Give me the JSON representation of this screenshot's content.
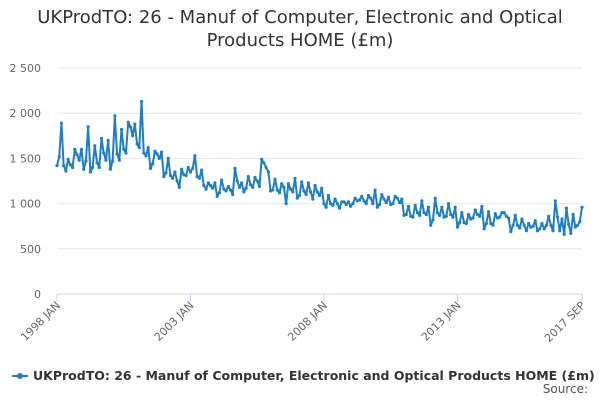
{
  "chart_data": {
    "type": "line",
    "title": "UKProdTO: 26 - Manuf of Computer, Electronic and Optical Products HOME (£m)",
    "xlabel": "",
    "ylabel": "",
    "ylim": [
      0,
      2500
    ],
    "yticks": [
      "0",
      "500",
      "1 000",
      "1 500",
      "2 000",
      "2 500"
    ],
    "xticks": [
      "1998 JAN",
      "2003 JAN",
      "2008 JAN",
      "2013 JAN",
      "2017 SEP"
    ],
    "grid": true,
    "legend_position": "bottom",
    "series": [
      {
        "name": "UKProdTO: 26 - Manuf of Computer, Electronic and Optical Products HOME (£m)",
        "color": "#1f7ebf",
        "points": [
          [
            "1998-01",
            1420
          ],
          [
            "1998-02",
            1520
          ],
          [
            "1998-03",
            1890
          ],
          [
            "1998-04",
            1420
          ],
          [
            "1998-05",
            1360
          ],
          [
            "1998-06",
            1490
          ],
          [
            "1998-07",
            1430
          ],
          [
            "1998-08",
            1400
          ],
          [
            "1998-09",
            1600
          ],
          [
            "1998-10",
            1540
          ],
          [
            "1998-11",
            1480
          ],
          [
            "1998-12",
            1600
          ],
          [
            "1999-01",
            1380
          ],
          [
            "1999-02",
            1470
          ],
          [
            "1999-03",
            1850
          ],
          [
            "1999-04",
            1350
          ],
          [
            "1999-05",
            1400
          ],
          [
            "1999-06",
            1640
          ],
          [
            "1999-07",
            1450
          ],
          [
            "1999-08",
            1400
          ],
          [
            "1999-09",
            1720
          ],
          [
            "1999-10",
            1560
          ],
          [
            "1999-11",
            1480
          ],
          [
            "1999-12",
            1700
          ],
          [
            "2000-01",
            1380
          ],
          [
            "2000-02",
            1470
          ],
          [
            "2000-03",
            1970
          ],
          [
            "2000-04",
            1550
          ],
          [
            "2000-05",
            1480
          ],
          [
            "2000-06",
            1820
          ],
          [
            "2000-07",
            1600
          ],
          [
            "2000-08",
            1560
          ],
          [
            "2000-09",
            1900
          ],
          [
            "2000-10",
            1850
          ],
          [
            "2000-11",
            1750
          ],
          [
            "2000-12",
            1880
          ],
          [
            "2001-01",
            1660
          ],
          [
            "2001-02",
            1620
          ],
          [
            "2001-03",
            2130
          ],
          [
            "2001-04",
            1560
          ],
          [
            "2001-05",
            1530
          ],
          [
            "2001-06",
            1620
          ],
          [
            "2001-07",
            1390
          ],
          [
            "2001-08",
            1440
          ],
          [
            "2001-09",
            1580
          ],
          [
            "2001-10",
            1550
          ],
          [
            "2001-11",
            1500
          ],
          [
            "2001-12",
            1570
          ],
          [
            "2002-01",
            1300
          ],
          [
            "2002-02",
            1340
          ],
          [
            "2002-03",
            1500
          ],
          [
            "2002-04",
            1310
          ],
          [
            "2002-05",
            1280
          ],
          [
            "2002-06",
            1350
          ],
          [
            "2002-07",
            1250
          ],
          [
            "2002-08",
            1180
          ],
          [
            "2002-09",
            1380
          ],
          [
            "2002-10",
            1320
          ],
          [
            "2002-11",
            1310
          ],
          [
            "2002-12",
            1400
          ],
          [
            "2003-01",
            1350
          ],
          [
            "2003-02",
            1390
          ],
          [
            "2003-03",
            1530
          ],
          [
            "2003-04",
            1300
          ],
          [
            "2003-05",
            1280
          ],
          [
            "2003-06",
            1370
          ],
          [
            "2003-07",
            1200
          ],
          [
            "2003-08",
            1160
          ],
          [
            "2003-09",
            1230
          ],
          [
            "2003-10",
            1200
          ],
          [
            "2003-11",
            1170
          ],
          [
            "2003-12",
            1230
          ],
          [
            "2004-01",
            1080
          ],
          [
            "2004-02",
            1120
          ],
          [
            "2004-03",
            1260
          ],
          [
            "2004-04",
            1160
          ],
          [
            "2004-05",
            1140
          ],
          [
            "2004-06",
            1190
          ],
          [
            "2004-07",
            1150
          ],
          [
            "2004-08",
            1100
          ],
          [
            "2004-09",
            1390
          ],
          [
            "2004-10",
            1250
          ],
          [
            "2004-11",
            1180
          ],
          [
            "2004-12",
            1230
          ],
          [
            "2005-01",
            1130
          ],
          [
            "2005-02",
            1170
          ],
          [
            "2005-03",
            1300
          ],
          [
            "2005-04",
            1210
          ],
          [
            "2005-05",
            1180
          ],
          [
            "2005-06",
            1290
          ],
          [
            "2005-07",
            1250
          ],
          [
            "2005-08",
            1190
          ],
          [
            "2005-09",
            1490
          ],
          [
            "2005-10",
            1450
          ],
          [
            "2005-11",
            1400
          ],
          [
            "2005-12",
            1350
          ],
          [
            "2006-01",
            1140
          ],
          [
            "2006-02",
            1150
          ],
          [
            "2006-03",
            1270
          ],
          [
            "2006-04",
            1150
          ],
          [
            "2006-05",
            1120
          ],
          [
            "2006-06",
            1220
          ],
          [
            "2006-07",
            1180
          ],
          [
            "2006-08",
            1000
          ],
          [
            "2006-09",
            1220
          ],
          [
            "2006-10",
            1160
          ],
          [
            "2006-11",
            1130
          ],
          [
            "2006-12",
            1280
          ],
          [
            "2007-01",
            1060
          ],
          [
            "2007-02",
            1090
          ],
          [
            "2007-03",
            1240
          ],
          [
            "2007-04",
            1140
          ],
          [
            "2007-05",
            1100
          ],
          [
            "2007-06",
            1230
          ],
          [
            "2007-07",
            1130
          ],
          [
            "2007-08",
            1050
          ],
          [
            "2007-09",
            1200
          ],
          [
            "2007-10",
            1130
          ],
          [
            "2007-11",
            1090
          ],
          [
            "2007-12",
            1170
          ],
          [
            "2008-01",
            1000
          ],
          [
            "2008-02",
            960
          ],
          [
            "2008-03",
            1090
          ],
          [
            "2008-04",
            1000
          ],
          [
            "2008-05",
            980
          ],
          [
            "2008-06",
            1050
          ],
          [
            "2008-07",
            1000
          ],
          [
            "2008-08",
            950
          ],
          [
            "2008-09",
            1020
          ],
          [
            "2008-10",
            1020
          ],
          [
            "2008-11",
            990
          ],
          [
            "2008-12",
            1020
          ],
          [
            "2009-01",
            970
          ],
          [
            "2009-02",
            1000
          ],
          [
            "2009-03",
            1060
          ],
          [
            "2009-04",
            1030
          ],
          [
            "2009-05",
            1040
          ],
          [
            "2009-06",
            1080
          ],
          [
            "2009-07",
            1030
          ],
          [
            "2009-08",
            1000
          ],
          [
            "2009-09",
            1090
          ],
          [
            "2009-10",
            1060
          ],
          [
            "2009-11",
            1000
          ],
          [
            "2009-12",
            1150
          ],
          [
            "2010-01",
            960
          ],
          [
            "2010-02",
            990
          ],
          [
            "2010-03",
            1100
          ],
          [
            "2010-04",
            1050
          ],
          [
            "2010-05",
            1010
          ],
          [
            "2010-06",
            1070
          ],
          [
            "2010-07",
            990
          ],
          [
            "2010-08",
            1000
          ],
          [
            "2010-09",
            1080
          ],
          [
            "2010-10",
            1060
          ],
          [
            "2010-11",
            1010
          ],
          [
            "2010-12",
            1050
          ],
          [
            "2011-01",
            870
          ],
          [
            "2011-02",
            880
          ],
          [
            "2011-03",
            970
          ],
          [
            "2011-04",
            860
          ],
          [
            "2011-05",
            850
          ],
          [
            "2011-06",
            980
          ],
          [
            "2011-07",
            900
          ],
          [
            "2011-08",
            870
          ],
          [
            "2011-09",
            1030
          ],
          [
            "2011-10",
            900
          ],
          [
            "2011-11",
            880
          ],
          [
            "2011-12",
            960
          ],
          [
            "2012-01",
            760
          ],
          [
            "2012-02",
            820
          ],
          [
            "2012-03",
            1060
          ],
          [
            "2012-04",
            900
          ],
          [
            "2012-05",
            870
          ],
          [
            "2012-06",
            960
          ],
          [
            "2012-07",
            850
          ],
          [
            "2012-08",
            860
          ],
          [
            "2012-09",
            1000
          ],
          [
            "2012-10",
            880
          ],
          [
            "2012-11",
            850
          ],
          [
            "2012-12",
            960
          ],
          [
            "2013-01",
            740
          ],
          [
            "2013-02",
            790
          ],
          [
            "2013-03",
            900
          ],
          [
            "2013-04",
            790
          ],
          [
            "2013-05",
            780
          ],
          [
            "2013-06",
            880
          ],
          [
            "2013-07",
            830
          ],
          [
            "2013-08",
            840
          ],
          [
            "2013-09",
            930
          ],
          [
            "2013-10",
            880
          ],
          [
            "2013-11",
            860
          ],
          [
            "2013-12",
            970
          ],
          [
            "2014-01",
            720
          ],
          [
            "2014-02",
            780
          ],
          [
            "2014-03",
            910
          ],
          [
            "2014-04",
            780
          ],
          [
            "2014-05",
            760
          ],
          [
            "2014-06",
            890
          ],
          [
            "2014-07",
            840
          ],
          [
            "2014-08",
            850
          ],
          [
            "2014-09",
            900
          ],
          [
            "2014-10",
            900
          ],
          [
            "2014-11",
            860
          ],
          [
            "2014-12",
            840
          ],
          [
            "2015-01",
            690
          ],
          [
            "2015-02",
            760
          ],
          [
            "2015-03",
            870
          ],
          [
            "2015-04",
            760
          ],
          [
            "2015-05",
            730
          ],
          [
            "2015-06",
            830
          ],
          [
            "2015-07",
            760
          ],
          [
            "2015-08",
            700
          ],
          [
            "2015-09",
            780
          ],
          [
            "2015-10",
            740
          ],
          [
            "2015-11",
            750
          ],
          [
            "2015-12",
            810
          ],
          [
            "2016-01",
            700
          ],
          [
            "2016-02",
            720
          ],
          [
            "2016-03",
            780
          ],
          [
            "2016-04",
            720
          ],
          [
            "2016-05",
            760
          ],
          [
            "2016-06",
            860
          ],
          [
            "2016-07",
            760
          ],
          [
            "2016-08",
            700
          ],
          [
            "2016-09",
            1030
          ],
          [
            "2016-10",
            850
          ],
          [
            "2016-11",
            700
          ],
          [
            "2016-12",
            830
          ],
          [
            "2017-01",
            660
          ],
          [
            "2017-02",
            950
          ],
          [
            "2017-03",
            770
          ],
          [
            "2017-04",
            670
          ],
          [
            "2017-05",
            880
          ],
          [
            "2017-06",
            740
          ],
          [
            "2017-07",
            760
          ],
          [
            "2017-08",
            800
          ],
          [
            "2017-09",
            960
          ]
        ]
      }
    ]
  },
  "legend": {
    "label": "UKProdTO: 26 - Manuf of Computer, Electronic and Optical Products HOME (£m)"
  },
  "source_label": "Source:"
}
